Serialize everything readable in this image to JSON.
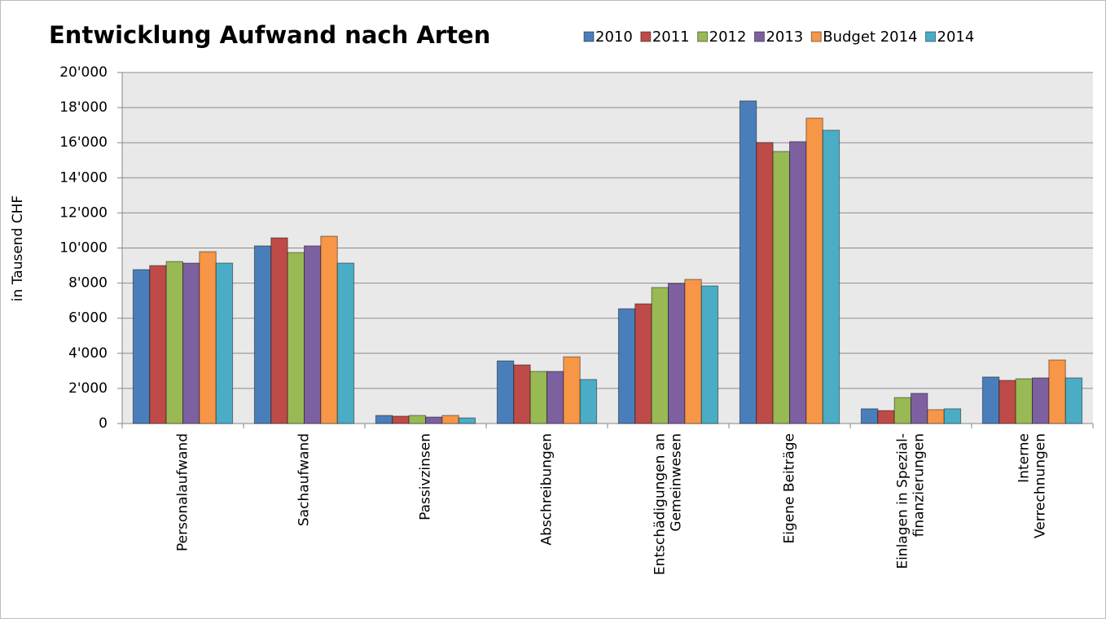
{
  "chart_data": {
    "type": "bar",
    "title": "Entwicklung Aufwand nach Arten",
    "y_label": "in Tausend CHF",
    "categories": [
      [
        "Personalaufwand"
      ],
      [
        "Sachaufwand"
      ],
      [
        "Passivzinsen"
      ],
      [
        "Abschreibungen"
      ],
      [
        "Entschädigungen an",
        "Gemeinwesen"
      ],
      [
        "Eigene Beiträge"
      ],
      [
        "Einlagen in Spezial-",
        "finanzierungen"
      ],
      [
        "Interne",
        "Verrechnungen"
      ]
    ],
    "series": [
      {
        "name": "2010",
        "color": "#4a7ebb",
        "values": [
          8770,
          10120,
          460,
          3570,
          6540,
          18380,
          840,
          2650
        ]
      },
      {
        "name": "2011",
        "color": "#be4b48",
        "values": [
          9000,
          10580,
          420,
          3340,
          6820,
          16010,
          740,
          2460
        ]
      },
      {
        "name": "2012",
        "color": "#98b954",
        "values": [
          9230,
          9740,
          460,
          2970,
          7750,
          15500,
          1480,
          2550
        ]
      },
      {
        "name": "2013",
        "color": "#7d60a0",
        "values": [
          9140,
          10120,
          370,
          2970,
          7980,
          16060,
          1720,
          2600
        ]
      },
      {
        "name": "Budget 2014",
        "color": "#f79646",
        "values": [
          9790,
          10670,
          460,
          3800,
          8210,
          17400,
          790,
          3620
        ]
      },
      {
        "name": "2014",
        "color": "#4bacc6",
        "values": [
          9140,
          9140,
          320,
          2510,
          7840,
          16710,
          840,
          2600
        ]
      }
    ],
    "ylim": [
      0,
      20000
    ],
    "yticks": [
      0,
      {
        "value": 2000,
        "label": "2'000"
      },
      {
        "value": 4000,
        "label": "4'000"
      },
      {
        "value": 6000,
        "label": "6'000"
      },
      {
        "value": 8000,
        "label": "8'000"
      },
      {
        "value": 10000,
        "label": "10'000"
      },
      {
        "value": 12000,
        "label": "12'000"
      },
      {
        "value": 14000,
        "label": "14'000"
      },
      {
        "value": 16000,
        "label": "16'000"
      },
      {
        "value": 18000,
        "label": "18'000"
      },
      {
        "value": 20000,
        "label": "20'000"
      }
    ],
    "grid": true,
    "legend": "top-right"
  }
}
